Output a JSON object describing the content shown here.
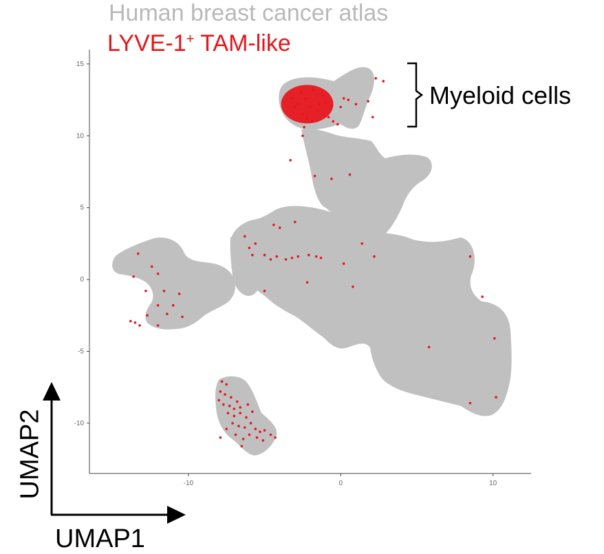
{
  "title": "Human breast cancer atlas",
  "subtitle_main": "LYVE-1",
  "subtitle_sup": "+",
  "subtitle_rest": " TAM-like",
  "annotation": "Myeloid cells",
  "axis_arrow_labels": {
    "x": "UMAP1",
    "y": "UMAP2"
  },
  "colors": {
    "background_cells": "#c0c0c0",
    "highlight_cells": "#e8141a",
    "title_gray": "#b9b9b9"
  },
  "chart_data": {
    "type": "scatter",
    "title": "Human breast cancer atlas",
    "xlabel": "UMAP1",
    "ylabel": "UMAP2",
    "xlim": [
      -16.5,
      12.5
    ],
    "ylim": [
      -13.5,
      16
    ],
    "x_ticks": [
      -10,
      0,
      10
    ],
    "y_ticks": [
      -10,
      -5,
      0,
      5,
      10,
      15
    ],
    "x_tick_labels": [
      "-10",
      "0",
      "10"
    ],
    "y_tick_labels": [
      "-10",
      "-5",
      "0",
      "5",
      "10",
      "15"
    ],
    "grid": false,
    "series": [
      {
        "name": "LYVE-1+ TAM-like",
        "points": [
          [
            -2.3,
            12.6
          ],
          [
            -2.0,
            12.0
          ],
          [
            -1.5,
            11.8
          ],
          [
            -2.8,
            12.2
          ],
          [
            -1.2,
            12.8
          ],
          [
            -2.5,
            11.5
          ],
          [
            -1.8,
            13.2
          ],
          [
            -3.0,
            12.0
          ],
          [
            -2.2,
            11.2
          ],
          [
            -1.4,
            12.2
          ],
          [
            -2.6,
            13.0
          ],
          [
            -1.0,
            12.3
          ],
          [
            -3.2,
            12.6
          ],
          [
            -2.4,
            10.6
          ],
          [
            -1.9,
            11.0
          ],
          [
            -0.6,
            12.1
          ],
          [
            0.0,
            12.0
          ],
          [
            0.5,
            12.5
          ],
          [
            1.0,
            12.2
          ],
          [
            1.8,
            12.4
          ],
          [
            0.2,
            12.6
          ],
          [
            2.3,
            14.0
          ],
          [
            2.8,
            13.8
          ],
          [
            2.1,
            11.3
          ],
          [
            -0.8,
            11.3
          ],
          [
            -0.5,
            11.0
          ],
          [
            -0.2,
            10.8
          ],
          [
            -2.5,
            10.0
          ],
          [
            -3.3,
            8.3
          ],
          [
            -1.7,
            7.2
          ],
          [
            -0.6,
            7.0
          ],
          [
            0.6,
            7.3
          ],
          [
            -3.0,
            4.0
          ],
          [
            -4.0,
            3.6
          ],
          [
            -4.4,
            3.8
          ],
          [
            -6.3,
            3.0
          ],
          [
            -6.0,
            2.2
          ],
          [
            -5.6,
            2.5
          ],
          [
            -5.0,
            1.7
          ],
          [
            -4.2,
            1.6
          ],
          [
            -3.6,
            1.4
          ],
          [
            -3.2,
            1.5
          ],
          [
            -2.8,
            1.6
          ],
          [
            -2.1,
            1.7
          ],
          [
            -1.6,
            1.6
          ],
          [
            -4.6,
            1.4
          ],
          [
            -5.8,
            1.7
          ],
          [
            -1.3,
            1.5
          ],
          [
            0.2,
            1.1
          ],
          [
            0.8,
            -0.5
          ],
          [
            1.4,
            2.5
          ],
          [
            2.2,
            1.6
          ],
          [
            -5.0,
            -0.8
          ],
          [
            -2.2,
            -0.2
          ],
          [
            -13.3,
            1.8
          ],
          [
            -12.4,
            0.9
          ],
          [
            -12.0,
            0.4
          ],
          [
            -13.6,
            0.2
          ],
          [
            -12.8,
            -0.8
          ],
          [
            -11.6,
            -0.8
          ],
          [
            -10.6,
            -1.0
          ],
          [
            -11.0,
            -1.8
          ],
          [
            -12.0,
            -1.8
          ],
          [
            -12.7,
            -2.5
          ],
          [
            -13.8,
            -2.9
          ],
          [
            -13.2,
            -3.2
          ],
          [
            -12.0,
            -3.2
          ],
          [
            -11.4,
            -2.4
          ],
          [
            -10.4,
            -2.6
          ],
          [
            -13.5,
            -3.0
          ],
          [
            -7.8,
            -7.1
          ],
          [
            -7.5,
            -7.3
          ],
          [
            -7.9,
            -7.8
          ],
          [
            -7.6,
            -8.0
          ],
          [
            -7.2,
            -8.2
          ],
          [
            -8.0,
            -8.4
          ],
          [
            -7.7,
            -8.7
          ],
          [
            -7.3,
            -8.8
          ],
          [
            -6.8,
            -8.5
          ],
          [
            -6.6,
            -8.9
          ],
          [
            -7.4,
            -9.3
          ],
          [
            -7.0,
            -9.5
          ],
          [
            -6.6,
            -9.3
          ],
          [
            -6.2,
            -9.6
          ],
          [
            -7.1,
            -10.0
          ],
          [
            -6.7,
            -10.2
          ],
          [
            -6.3,
            -10.3
          ],
          [
            -5.9,
            -10.0
          ],
          [
            -5.6,
            -10.4
          ],
          [
            -5.3,
            -10.6
          ],
          [
            -5.0,
            -10.5
          ],
          [
            -4.6,
            -10.8
          ],
          [
            -4.3,
            -11.0
          ],
          [
            -6.0,
            -10.8
          ],
          [
            -5.5,
            -11.0
          ],
          [
            -5.1,
            -11.2
          ],
          [
            -6.4,
            -11.1
          ],
          [
            -6.9,
            -10.8
          ],
          [
            -7.5,
            -10.4
          ],
          [
            -7.0,
            -9.0
          ],
          [
            -6.1,
            -8.7
          ],
          [
            -5.8,
            -9.2
          ],
          [
            -7.9,
            -11.0
          ],
          [
            -6.5,
            -11.6
          ],
          [
            8.5,
            1.6
          ],
          [
            9.3,
            -1.2
          ],
          [
            5.8,
            -4.7
          ],
          [
            10.1,
            -4.1
          ],
          [
            8.5,
            -8.6
          ],
          [
            10.2,
            -8.2
          ]
        ]
      }
    ],
    "annotations": [
      "Myeloid cells"
    ]
  }
}
